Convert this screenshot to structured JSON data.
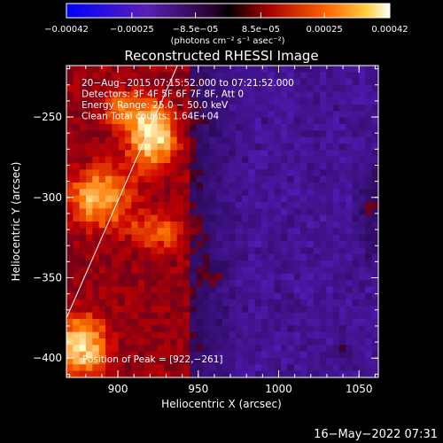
{
  "chart_data": {
    "type": "heatmap",
    "title": "Reconstructed RHESSI Image",
    "xlabel": "Heliocentric X (arcsec)",
    "ylabel": "Heliocentric Y (arcsec)",
    "xlim": [
      868,
      1062
    ],
    "ylim": [
      -412,
      -218
    ],
    "x_ticks": [
      900,
      950,
      1000,
      1050
    ],
    "x_tick_labels": [
      "900",
      "950",
      "1000",
      "1050"
    ],
    "y_ticks": [
      -250,
      -300,
      -350,
      -400
    ],
    "y_tick_labels": [
      "−250",
      "−300",
      "−350",
      "−400"
    ],
    "colorbar": {
      "range": [
        -0.00042,
        0.00042
      ],
      "ticks": [
        -0.00042,
        -0.00025,
        -8.5e-05,
        8.5e-05,
        0.00025,
        0.00042
      ],
      "tick_labels": [
        "−0.00042",
        "−0.00025",
        "−8.5e−05",
        "8.5e−05",
        "0.00025",
        "0.00042"
      ],
      "unit_label": "(photons cm⁻² s⁻¹ asec⁻²)"
    },
    "annotations": [
      "20−Aug−2015 07:15:52.000 to 07:21:52.000",
      "Detectors: 3F 4F 5F 6F 7F 8F, Att 0",
      "Energy Range: 25.0 − 50.0 keV",
      "Clean     Total counts: 1.64E+04",
      "Position of Peak = [922,−261]"
    ],
    "peak": [
      922,
      -261
    ],
    "limb_line": {
      "x": [
        868,
        937
      ],
      "y": [
        -375,
        -218
      ]
    },
    "sources": [
      {
        "x": 922,
        "y": -262,
        "sx": 12,
        "sy": 16,
        "amp": 1.0
      },
      {
        "x": 888,
        "y": -300,
        "sx": 16,
        "sy": 16,
        "amp": 0.85
      },
      {
        "x": 877,
        "y": -392,
        "sx": 14,
        "sy": 16,
        "amp": 0.95
      },
      {
        "x": 926,
        "y": -322,
        "sx": 14,
        "sy": 10,
        "amp": 0.6
      },
      {
        "x": 902,
        "y": -245,
        "sx": 11,
        "sy": 10,
        "amp": 0.55
      },
      {
        "x": 960,
        "y": -348,
        "sx": 6,
        "sy": 5,
        "amp": 0.3
      },
      {
        "x": 1058,
        "y": -305,
        "sx": 5,
        "sy": 25,
        "amp": 0.35
      },
      {
        "x": 1040,
        "y": -395,
        "sx": 5,
        "sy": 5,
        "amp": 0.25
      }
    ],
    "grid": false
  },
  "footer": {
    "timestamp": "16−May−2022 07:31"
  }
}
